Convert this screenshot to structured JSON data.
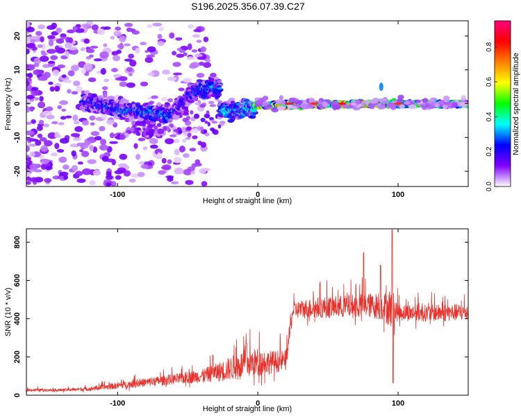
{
  "figure": {
    "title": "S196.2025.356.07.39.C27"
  },
  "chart_data": [
    {
      "type": "heatmap",
      "name": "spectrogram",
      "xlabel": "Height of straight line (km)",
      "ylabel": "Frequency (Hz)",
      "xlim": [
        -165,
        150
      ],
      "ylim": [
        -24.5,
        24.5
      ],
      "xticks": [
        -100,
        0,
        100
      ],
      "yticks": [
        -20,
        -10,
        0,
        10,
        20
      ],
      "colorbar": {
        "label": "Normalized spectral amplitude",
        "range": [
          0,
          0.95
        ],
        "ticks": [
          0.0,
          0.2,
          0.4,
          0.6,
          0.8
        ],
        "colormap": [
          "#ffffff",
          "#8000ff",
          "#0000ff",
          "#00ffff",
          "#00ff00",
          "#ffff00",
          "#ff8000",
          "#ff0000",
          "#ff0080"
        ]
      },
      "band_segments": [
        {
          "x0": -125,
          "x1": -100,
          "f0": 0.8,
          "f1": -1.5,
          "amp": 0.25
        },
        {
          "x0": -100,
          "x1": -62,
          "f0": -1.5,
          "f1": -3.5,
          "amp": 0.3
        },
        {
          "x0": -62,
          "x1": -45,
          "f0": -3.5,
          "f1": 4.0,
          "amp": 0.25
        },
        {
          "x0": -45,
          "x1": -27,
          "f0": 4.0,
          "f1": 4.5,
          "amp": 0.3
        },
        {
          "x0": -27,
          "x1": -2,
          "f0": -2.0,
          "f1": -1.5,
          "amp": 0.35
        },
        {
          "x0": -2,
          "x1": 90,
          "f0": -0.5,
          "f1": 0.0,
          "amp": 0.65
        },
        {
          "x0": 90,
          "x1": 150,
          "f0": 0.0,
          "f1": 0.0,
          "amp": 0.5
        }
      ],
      "features": [
        {
          "x": 88,
          "f": 5,
          "amp": 0.3
        },
        {
          "x": 22,
          "f": 0,
          "amp": 0.9
        },
        {
          "x": 40,
          "f": 0,
          "amp": 0.8
        },
        {
          "x": 60,
          "f": 0,
          "amp": 0.85
        },
        {
          "x": 100,
          "f": 0,
          "amp": 0.8
        }
      ]
    },
    {
      "type": "line",
      "name": "snr",
      "xlabel": "Height of straight line (km)",
      "ylabel": "SNR (10 * v/v)",
      "xlim": [
        -165,
        150
      ],
      "ylim": [
        0,
        870
      ],
      "xticks": [
        -100,
        0,
        100
      ],
      "yticks": [
        0,
        200,
        400,
        600,
        800
      ],
      "color": "#e8312a",
      "series": [
        {
          "name": "SNR",
          "x": [
            -165,
            -140,
            -120,
            -100,
            -80,
            -60,
            -40,
            -25,
            -10,
            0,
            10,
            20,
            25,
            40,
            60,
            80,
            90,
            95,
            100,
            120,
            150
          ],
          "y": [
            25,
            25,
            30,
            45,
            60,
            75,
            90,
            110,
            140,
            150,
            155,
            165,
            430,
            440,
            445,
            450,
            440,
            420,
            420,
            415,
            420
          ],
          "spread": [
            15,
            15,
            20,
            35,
            45,
            55,
            70,
            110,
            150,
            150,
            120,
            110,
            90,
            110,
            120,
            130,
            150,
            200,
            90,
            90,
            90
          ]
        }
      ],
      "spikes": [
        {
          "x": 95.8,
          "y": 865
        },
        {
          "x": 96.5,
          "y": 65
        },
        {
          "x": 75.5,
          "y": 745
        },
        {
          "x": 87.5,
          "y": 680
        },
        {
          "x": -32,
          "y": 210
        },
        {
          "x": -8,
          "y": 270
        }
      ]
    }
  ]
}
